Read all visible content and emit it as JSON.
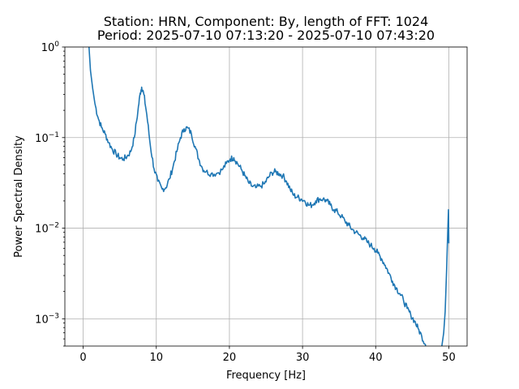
{
  "chart_data": {
    "type": "line",
    "title_line1": "Station: HRN, Component: By, length of FFT: 1024",
    "title_line2": "Period: 2025-07-10 07:13:20 - 2025-07-10 07:43:20",
    "xlabel": "Frequency [Hz]",
    "ylabel": "Power Spectral Density",
    "xlim": [
      -2.5,
      52.5
    ],
    "ylim": [
      0.0005,
      1
    ],
    "yscale": "log",
    "grid": true,
    "x_ticks": [
      0,
      10,
      20,
      30,
      40,
      50
    ],
    "x_tick_labels": [
      "0",
      "10",
      "20",
      "30",
      "40",
      "50"
    ],
    "y_ticks": [
      {
        "value": 1,
        "base": "10",
        "exp": "0"
      },
      {
        "value": 0.1,
        "base": "10",
        "exp": "−1"
      },
      {
        "value": 0.01,
        "base": "10",
        "exp": "−2"
      },
      {
        "value": 0.001,
        "base": "10",
        "exp": "−3"
      }
    ],
    "line_color": "#1f77b4",
    "series": [
      {
        "points": [
          [
            0.8,
            1.0
          ],
          [
            1.0,
            0.55
          ],
          [
            1.3,
            0.35
          ],
          [
            1.6,
            0.24
          ],
          [
            2.0,
            0.17
          ],
          [
            2.5,
            0.13
          ],
          [
            3.0,
            0.11
          ],
          [
            3.5,
            0.088
          ],
          [
            4.0,
            0.074
          ],
          [
            4.5,
            0.066
          ],
          [
            5.0,
            0.06
          ],
          [
            5.5,
            0.058
          ],
          [
            6.0,
            0.062
          ],
          [
            6.5,
            0.07
          ],
          [
            7.0,
            0.1
          ],
          [
            7.5,
            0.2
          ],
          [
            7.8,
            0.31
          ],
          [
            8.0,
            0.36
          ],
          [
            8.3,
            0.3
          ],
          [
            8.7,
            0.18
          ],
          [
            9.2,
            0.08
          ],
          [
            9.7,
            0.045
          ],
          [
            10.2,
            0.033
          ],
          [
            10.8,
            0.027
          ],
          [
            11.3,
            0.028
          ],
          [
            11.8,
            0.035
          ],
          [
            12.3,
            0.048
          ],
          [
            12.8,
            0.07
          ],
          [
            13.3,
            0.1
          ],
          [
            13.8,
            0.125
          ],
          [
            14.3,
            0.128
          ],
          [
            14.8,
            0.11
          ],
          [
            15.3,
            0.08
          ],
          [
            15.8,
            0.058
          ],
          [
            16.3,
            0.046
          ],
          [
            16.8,
            0.042
          ],
          [
            17.5,
            0.04
          ],
          [
            18.2,
            0.04
          ],
          [
            19.0,
            0.044
          ],
          [
            19.6,
            0.052
          ],
          [
            20.1,
            0.058
          ],
          [
            20.6,
            0.06
          ],
          [
            21.1,
            0.052
          ],
          [
            21.6,
            0.045
          ],
          [
            22.1,
            0.038
          ],
          [
            22.6,
            0.032
          ],
          [
            23.1,
            0.029
          ],
          [
            23.6,
            0.028
          ],
          [
            24.2,
            0.029
          ],
          [
            24.8,
            0.031
          ],
          [
            25.3,
            0.036
          ],
          [
            25.8,
            0.041
          ],
          [
            26.3,
            0.042
          ],
          [
            26.8,
            0.04
          ],
          [
            27.3,
            0.038
          ],
          [
            27.8,
            0.033
          ],
          [
            28.3,
            0.027
          ],
          [
            28.8,
            0.023
          ],
          [
            29.3,
            0.022
          ],
          [
            29.8,
            0.021
          ],
          [
            30.3,
            0.02
          ],
          [
            30.8,
            0.018
          ],
          [
            31.3,
            0.018
          ],
          [
            31.8,
            0.02
          ],
          [
            32.3,
            0.021
          ],
          [
            32.8,
            0.021
          ],
          [
            33.3,
            0.02
          ],
          [
            33.8,
            0.018
          ],
          [
            34.3,
            0.016
          ],
          [
            34.8,
            0.015
          ],
          [
            35.3,
            0.0135
          ],
          [
            35.8,
            0.012
          ],
          [
            36.3,
            0.0108
          ],
          [
            36.8,
            0.0097
          ],
          [
            37.3,
            0.009
          ],
          [
            37.8,
            0.0084
          ],
          [
            38.3,
            0.0078
          ],
          [
            38.8,
            0.0071
          ],
          [
            39.3,
            0.0065
          ],
          [
            39.8,
            0.006
          ],
          [
            40.3,
            0.0053
          ],
          [
            40.8,
            0.0046
          ],
          [
            41.3,
            0.0039
          ],
          [
            41.8,
            0.0032
          ],
          [
            42.3,
            0.0026
          ],
          [
            42.8,
            0.0022
          ],
          [
            43.3,
            0.0019
          ],
          [
            43.8,
            0.0016
          ],
          [
            44.3,
            0.0013
          ],
          [
            44.8,
            0.0011
          ],
          [
            45.3,
            0.00095
          ],
          [
            45.8,
            0.00078
          ],
          [
            46.3,
            0.00064
          ],
          [
            46.8,
            0.00052
          ],
          [
            47.0,
            0.00047
          ]
        ]
      },
      {
        "points": [
          [
            49.0,
            0.00047
          ],
          [
            49.3,
            0.0007
          ],
          [
            49.5,
            0.0012
          ],
          [
            49.7,
            0.0035
          ],
          [
            49.85,
            0.009
          ],
          [
            49.95,
            0.016
          ],
          [
            50.0,
            0.0068
          ]
        ]
      }
    ]
  }
}
